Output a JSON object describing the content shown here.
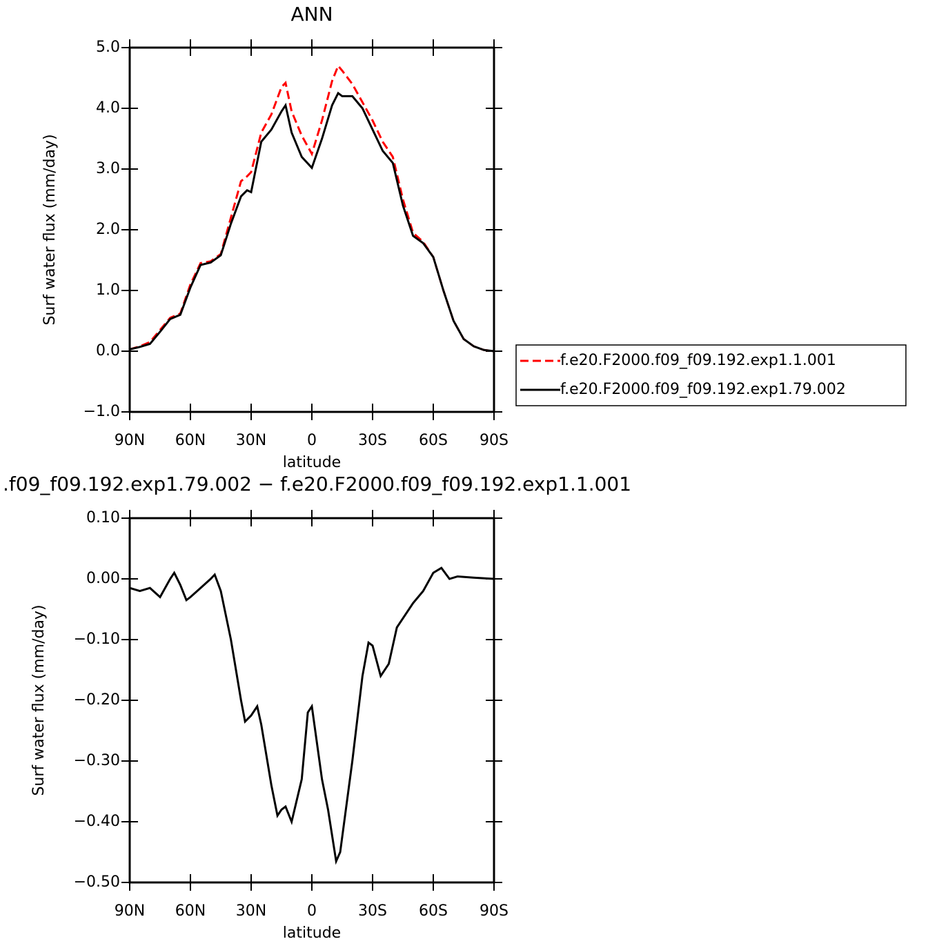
{
  "chart_data": [
    {
      "type": "line",
      "title": "ANN",
      "x_label": "latitude",
      "y_label": "Surf water flux (mm/day)",
      "x": [
        90,
        85,
        80,
        75,
        70,
        65,
        60,
        55,
        50,
        45,
        40,
        35,
        32,
        30,
        25,
        20,
        15,
        13,
        10,
        5,
        0,
        -5,
        -10,
        -13,
        -15,
        -20,
        -25,
        -30,
        -35,
        -40,
        -45,
        -50,
        -55,
        -60,
        -65,
        -70,
        -75,
        -80,
        -85,
        -90
      ],
      "series": [
        {
          "name": "f.e20.F2000.f09_f09.192.exp1.1.001",
          "color": "#ff0000",
          "line_style": "dashed",
          "values": [
            0.03,
            0.08,
            0.15,
            0.35,
            0.55,
            0.62,
            1.1,
            1.45,
            1.48,
            1.6,
            2.2,
            2.8,
            2.88,
            2.95,
            3.6,
            3.9,
            4.35,
            4.42,
            3.95,
            3.55,
            3.25,
            3.8,
            4.45,
            4.7,
            4.62,
            4.4,
            4.1,
            3.8,
            3.45,
            3.2,
            2.5,
            1.95,
            1.8,
            1.55,
            1.0,
            0.5,
            0.2,
            0.08,
            0.02,
            0.0
          ]
        },
        {
          "name": "f.e20.F2000.f09_f09.192.exp1.79.002",
          "color": "#000000",
          "line_style": "solid",
          "values": [
            0.03,
            0.07,
            0.12,
            0.32,
            0.53,
            0.6,
            1.05,
            1.42,
            1.46,
            1.58,
            2.1,
            2.55,
            2.65,
            2.62,
            3.45,
            3.65,
            3.95,
            4.05,
            3.6,
            3.2,
            3.02,
            3.5,
            4.05,
            4.25,
            4.2,
            4.2,
            4.0,
            3.65,
            3.3,
            3.1,
            2.4,
            1.9,
            1.78,
            1.55,
            1.0,
            0.5,
            0.2,
            0.08,
            0.02,
            0.0
          ]
        }
      ],
      "xlim": [
        90,
        -90
      ],
      "xticks": [
        {
          "value": 90,
          "label": "90N"
        },
        {
          "value": 60,
          "label": "60N"
        },
        {
          "value": 30,
          "label": "30N"
        },
        0,
        {
          "value": -30,
          "label": "30S"
        },
        {
          "value": -60,
          "label": "60S"
        },
        {
          "value": -90,
          "label": "90S"
        }
      ],
      "ylim": [
        -1,
        5
      ],
      "yticks": [
        {
          "value": -1,
          "label": "−1.0"
        },
        {
          "value": 0,
          "label": "0.0"
        },
        {
          "value": 1,
          "label": "1.0"
        },
        {
          "value": 2,
          "label": "2.0"
        },
        {
          "value": 3,
          "label": "3.0"
        },
        {
          "value": 4,
          "label": "4.0"
        },
        {
          "value": 5,
          "label": "5.0"
        }
      ],
      "legend": "right"
    },
    {
      "type": "line",
      "title": ".f09_f09.192.exp1.79.002 − f.e20.F2000.f09_f09.192.exp1.1.001",
      "x_label": "latitude",
      "y_label": "Surf water flux (mm/day)",
      "x": [
        90,
        85,
        80,
        75,
        70,
        68,
        65,
        62,
        60,
        55,
        50,
        48,
        45,
        40,
        35,
        33,
        30,
        27,
        25,
        22,
        20,
        17,
        15,
        13,
        10,
        5,
        2,
        0,
        -5,
        -8,
        -12,
        -14,
        -20,
        -25,
        -28,
        -30,
        -34,
        -38,
        -42,
        -50,
        -55,
        -60,
        -64,
        -68,
        -72,
        -80,
        -90
      ],
      "series": [
        {
          "color": "#000000",
          "line_style": "solid",
          "values": [
            -0.015,
            -0.02,
            -0.015,
            -0.03,
            0.0,
            0.01,
            -0.01,
            -0.035,
            -0.03,
            -0.015,
            0.0,
            0.007,
            -0.02,
            -0.1,
            -0.2,
            -0.235,
            -0.225,
            -0.21,
            -0.24,
            -0.3,
            -0.34,
            -0.39,
            -0.38,
            -0.375,
            -0.4,
            -0.33,
            -0.22,
            -0.21,
            -0.33,
            -0.38,
            -0.465,
            -0.45,
            -0.3,
            -0.16,
            -0.105,
            -0.11,
            -0.16,
            -0.14,
            -0.08,
            -0.04,
            -0.02,
            0.01,
            0.018,
            0.0,
            0.004,
            0.002,
            0.0
          ]
        }
      ],
      "xlim": [
        90,
        -90
      ],
      "xticks": [
        {
          "value": 90,
          "label": "90N"
        },
        {
          "value": 60,
          "label": "60N"
        },
        {
          "value": 30,
          "label": "30N"
        },
        0,
        {
          "value": -30,
          "label": "30S"
        },
        {
          "value": -60,
          "label": "60S"
        },
        {
          "value": -90,
          "label": "90S"
        }
      ],
      "ylim": [
        -0.5,
        0.1
      ],
      "yticks": [
        {
          "value": -0.5,
          "label": "−0.50"
        },
        {
          "value": -0.4,
          "label": "−0.40"
        },
        {
          "value": -0.3,
          "label": "−0.30"
        },
        {
          "value": -0.2,
          "label": "−0.20"
        },
        {
          "value": -0.1,
          "label": "−0.10"
        },
        {
          "value": 0,
          "label": "0.00"
        },
        {
          "value": 0.1,
          "label": "0.10"
        }
      ]
    }
  ]
}
